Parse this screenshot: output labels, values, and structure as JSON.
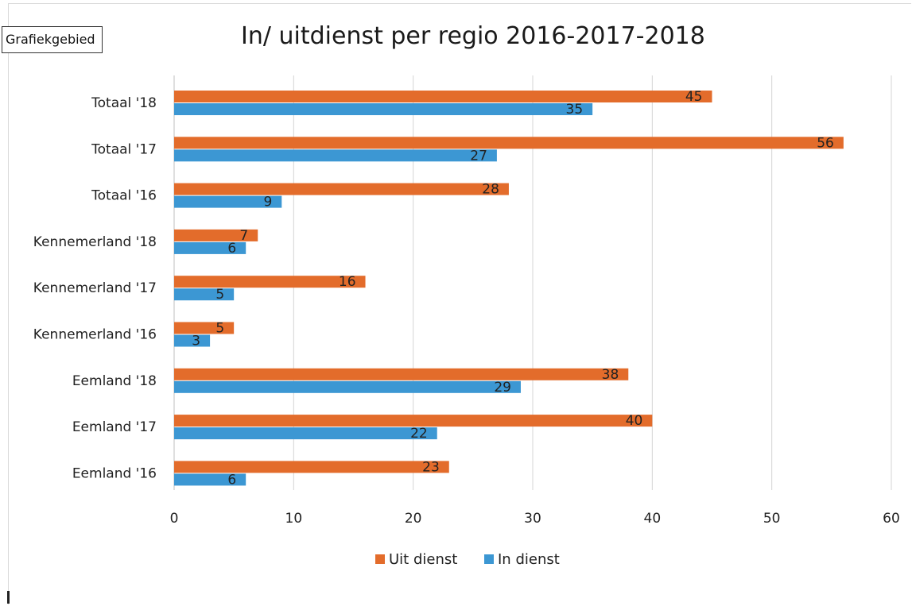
{
  "chart_area_label": "Grafiekgebied",
  "chart_data": {
    "type": "bar",
    "orientation": "horizontal",
    "title": "In/ uitdienst per regio 2016-2017-2018",
    "categories": [
      "Totaal '18",
      "Totaal '17",
      "Totaal '16",
      "Kennemerland '18",
      "Kennemerland '17",
      "Kennemerland '16",
      "Eemland '18",
      "Eemland '17",
      "Eemland '16"
    ],
    "series": [
      {
        "name": "Uit dienst",
        "color": "#e36c2b",
        "values": [
          45,
          56,
          28,
          7,
          16,
          5,
          38,
          40,
          23
        ]
      },
      {
        "name": "In dienst",
        "color": "#3c97d3",
        "values": [
          35,
          27,
          9,
          6,
          5,
          3,
          29,
          22,
          6
        ]
      }
    ],
    "xlim": [
      0,
      60
    ],
    "xticks": [
      0,
      10,
      20,
      30,
      40,
      50,
      60
    ],
    "grid": true,
    "legend_position": "bottom",
    "data_labels": true
  }
}
